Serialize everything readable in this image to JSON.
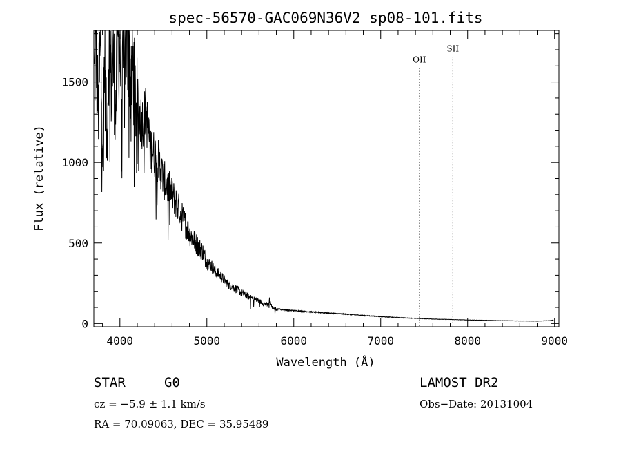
{
  "chart_data": {
    "type": "line",
    "title": "spec-56570-GAC069N36V2_sp08-101.fits",
    "xlabel": "Wavelength (Å)",
    "ylabel": "Flux (relative)",
    "xlim": [
      3700,
      9050
    ],
    "ylim": [
      -20,
      1820
    ],
    "x_ticks": [
      4000,
      5000,
      6000,
      7000,
      8000,
      9000
    ],
    "y_ticks": [
      0,
      500,
      1000,
      1500
    ],
    "grid": false,
    "series": [
      {
        "x": [
          3700,
          3725,
          3750,
          3775,
          3800,
          3825,
          3850,
          3875,
          3900,
          3925,
          3950,
          3975,
          4000,
          4025,
          4050,
          4075,
          4100,
          4125,
          4150,
          4175,
          4200,
          4250,
          4300,
          4350,
          4400,
          4450,
          4500,
          4550,
          4600,
          4650,
          4700,
          4750,
          4800,
          4850,
          4900,
          4950,
          5000,
          5050,
          5100,
          5150,
          5200,
          5250,
          5300,
          5350,
          5400,
          5450,
          5500,
          5550,
          5600,
          5650,
          5700,
          5720,
          5750,
          5800,
          5900,
          6000,
          6200,
          6400,
          6600,
          6800,
          7000,
          7200,
          7400,
          7600,
          7800,
          8000,
          8200,
          8400,
          8600,
          8800,
          8950,
          9000
        ],
        "y": [
          1450,
          1750,
          1300,
          1700,
          1200,
          1650,
          1100,
          1780,
          1500,
          1650,
          1300,
          1780,
          1700,
          1400,
          1800,
          1650,
          1750,
          1500,
          1600,
          1400,
          1350,
          1250,
          1300,
          1100,
          1050,
          1000,
          900,
          850,
          800,
          750,
          680,
          620,
          560,
          520,
          480,
          450,
          380,
          360,
          320,
          300,
          270,
          240,
          230,
          210,
          190,
          175,
          160,
          150,
          140,
          125,
          115,
          150,
          100,
          90,
          85,
          80,
          72,
          65,
          58,
          50,
          43,
          37,
          32,
          28,
          25,
          22,
          20,
          18,
          16,
          15,
          18,
          22
        ]
      }
    ],
    "lines": [
      {
        "x": 7445,
        "label": "OII",
        "label_y": 1620
      },
      {
        "x": 7830,
        "label": "SII",
        "label_y": 1690
      }
    ]
  },
  "info": {
    "object_class": "STAR",
    "subclass": "G0",
    "redshift": "cz = −5.9 ± 1.1 km/s",
    "coords": "RA =  70.09063, DEC =  35.95489",
    "survey": "LAMOST DR2",
    "obs_date": "Obs−Date: 20131004"
  }
}
